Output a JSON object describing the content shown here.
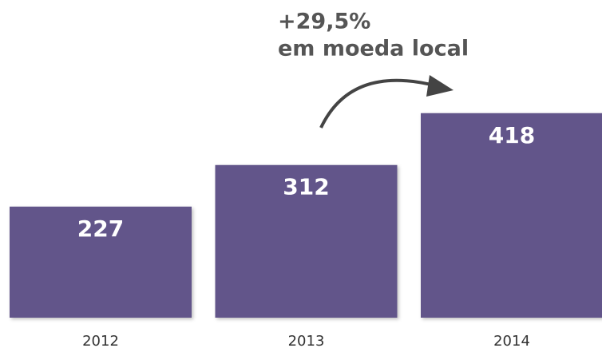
{
  "chart_data": {
    "type": "bar",
    "annotation": [
      "+29,5%",
      "em moeda local"
    ],
    "categories": [
      "2012",
      "2013",
      "2014"
    ],
    "values": [
      227,
      312,
      418
    ],
    "color": "#62558a"
  }
}
